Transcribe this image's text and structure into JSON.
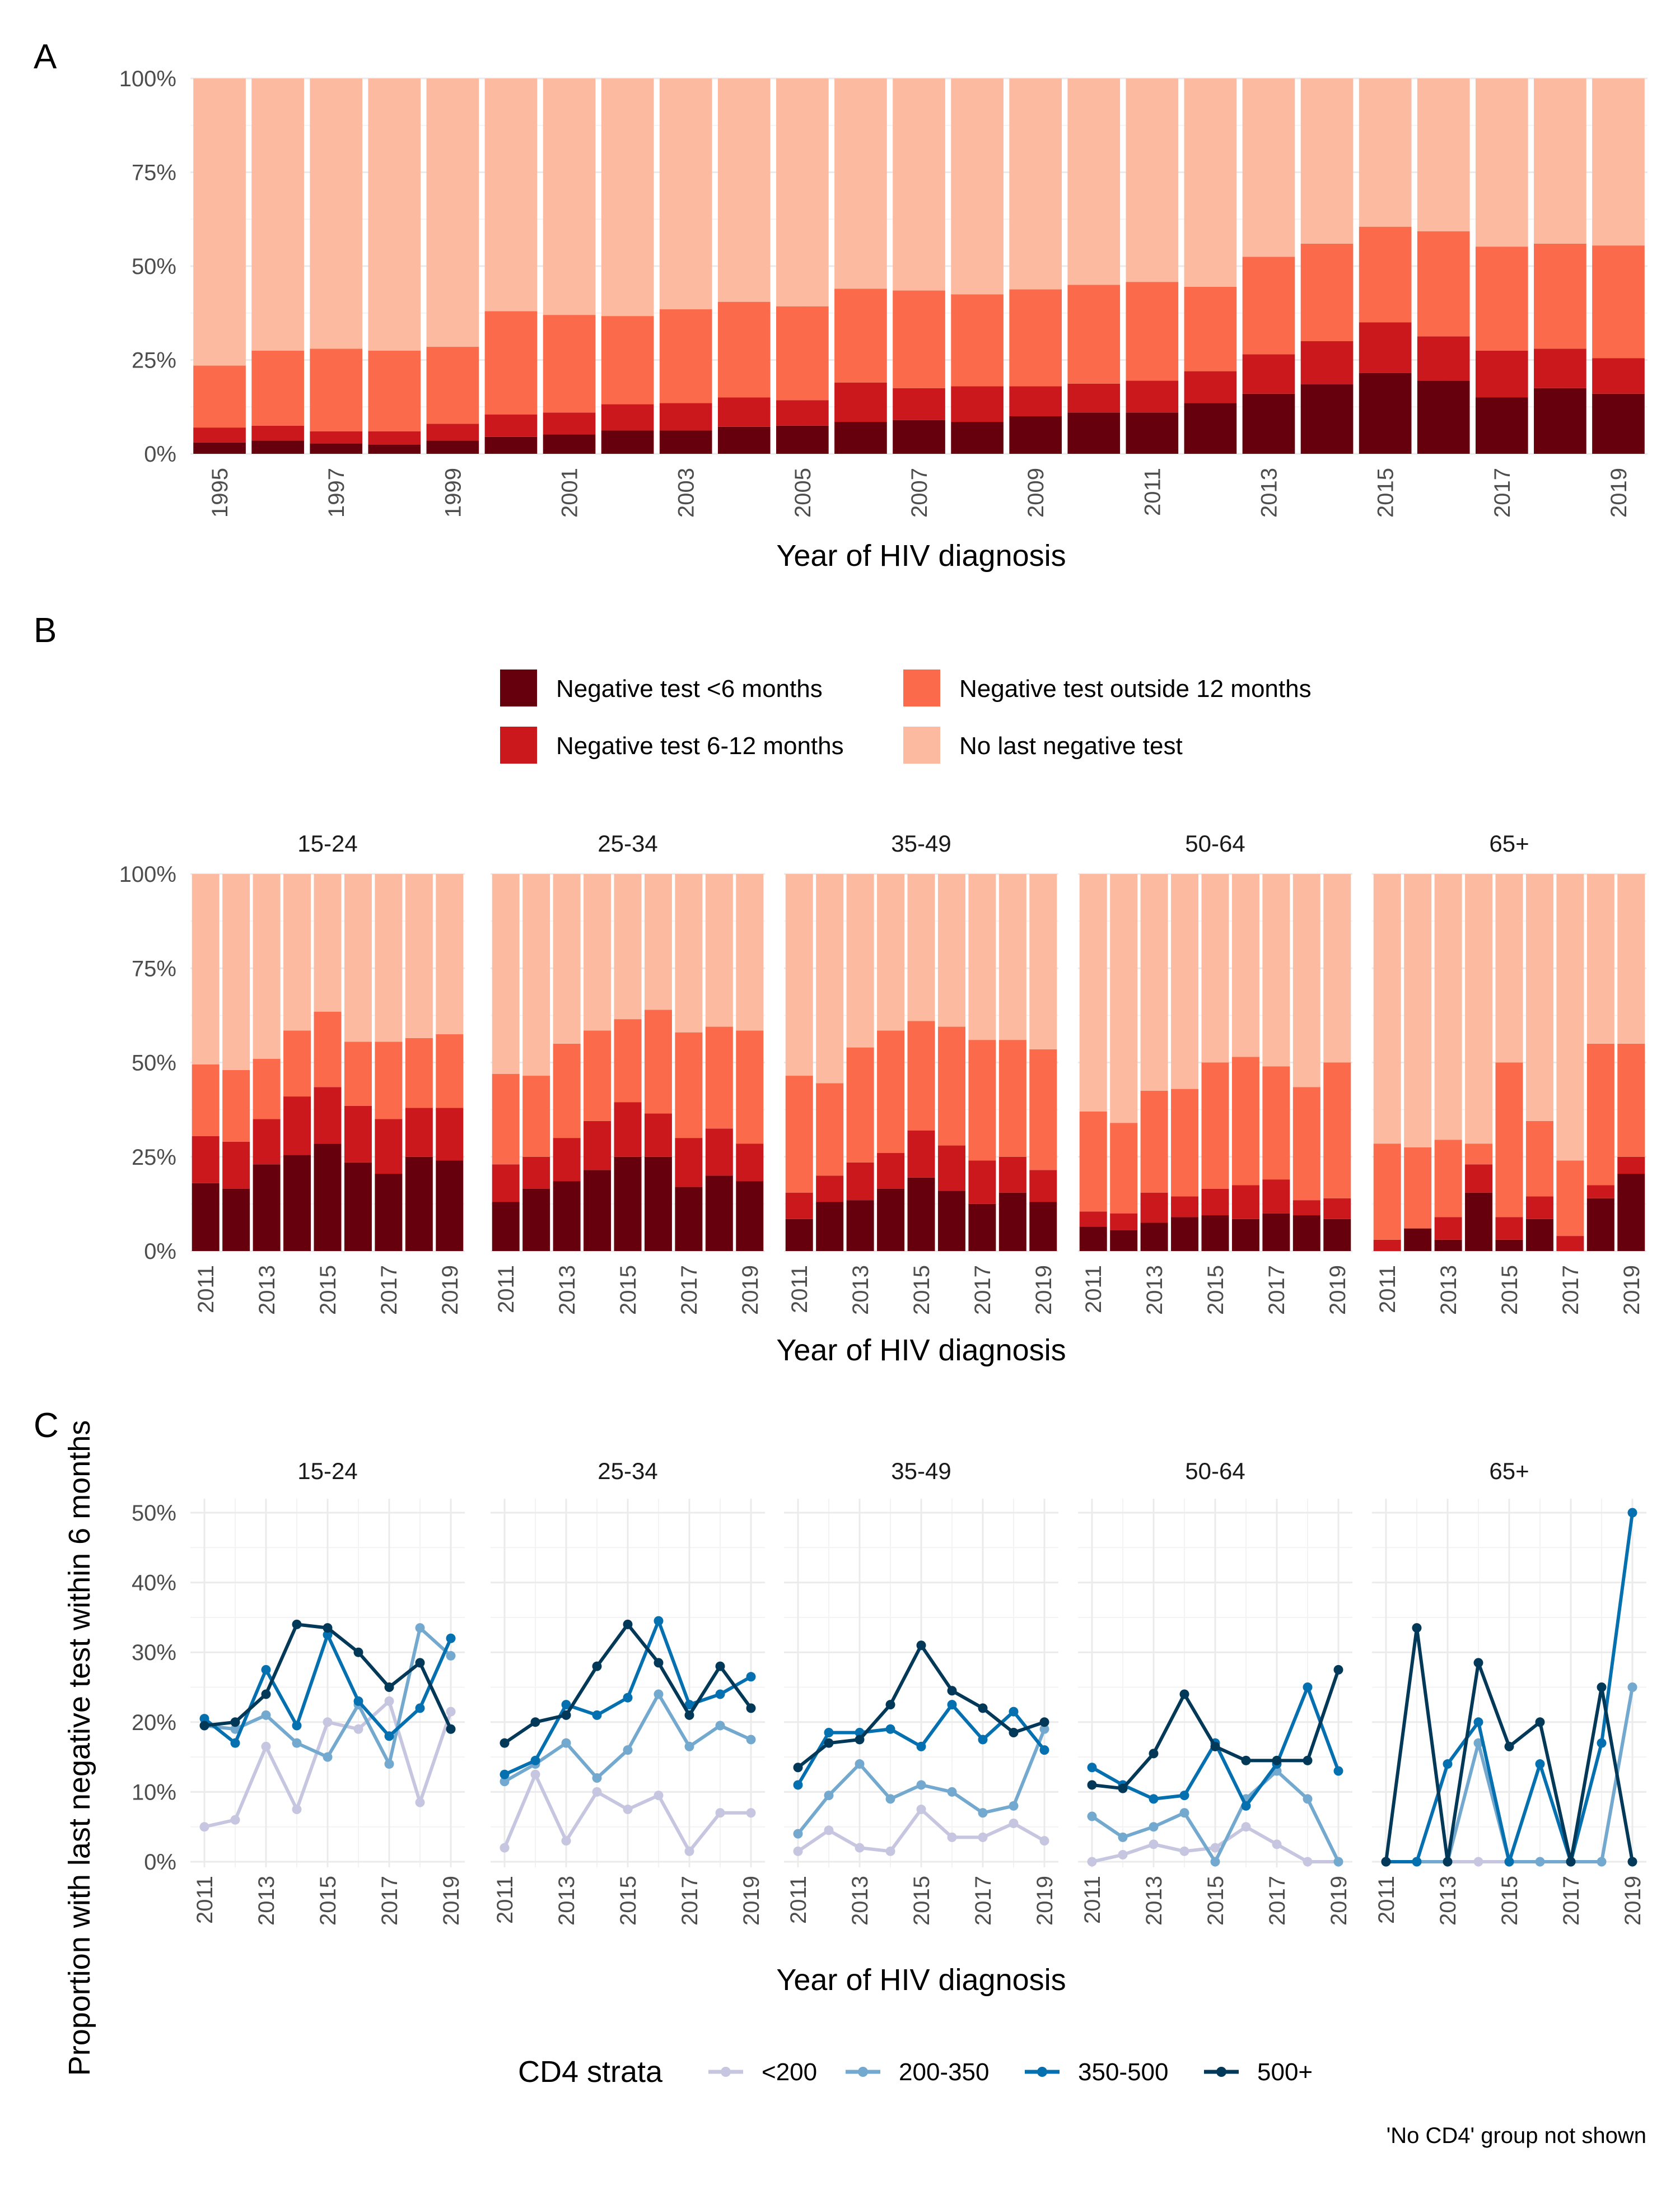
{
  "chart_data": [
    {
      "type": "bar",
      "panel_label": "A",
      "stacked": true,
      "categories": [
        "1995",
        "1996",
        "1997",
        "1998",
        "1999",
        "2000",
        "2001",
        "2002",
        "2003",
        "2004",
        "2005",
        "2006",
        "2007",
        "2008",
        "2009",
        "2010",
        "2011",
        "2012",
        "2013",
        "2014",
        "2015",
        "2016",
        "2017",
        "2018",
        "2019"
      ],
      "x_tick_labels": [
        "1995",
        "1997",
        "1999",
        "2001",
        "2003",
        "2005",
        "2007",
        "2009",
        "2011",
        "2013",
        "2015",
        "2017",
        "2019"
      ],
      "series": [
        {
          "name": "Negative test <6 months",
          "values": [
            3,
            3.5,
            2.8,
            2.5,
            3.5,
            4.5,
            5.2,
            6.2,
            6.2,
            7.2,
            7.5,
            8.5,
            9,
            8.5,
            10,
            11,
            11,
            13.5,
            16,
            18.5,
            21.5,
            19.5,
            15,
            17.5,
            16
          ]
        },
        {
          "name": "Negative test 6-12 months",
          "values": [
            4,
            4,
            3.2,
            3.5,
            4.5,
            6,
            5.8,
            7,
            7.3,
            7.8,
            6.8,
            10.5,
            8.5,
            9.5,
            8,
            7.7,
            8.5,
            8.5,
            10.5,
            11.5,
            13.5,
            11.8,
            12.5,
            10.5,
            9.5
          ]
        },
        {
          "name": "Negative test outside 12 months",
          "values": [
            16.5,
            20,
            22,
            21.5,
            20.5,
            27.5,
            26,
            23.5,
            25,
            25.5,
            25,
            25,
            26,
            24.5,
            25.8,
            26.3,
            26.3,
            22.5,
            26,
            26,
            25.5,
            28,
            27.7,
            28,
            30
          ]
        },
        {
          "name": "No last negative test",
          "values": [
            76.5,
            72.5,
            72,
            72.5,
            71.5,
            62,
            63,
            63.3,
            61.5,
            59.5,
            60.7,
            56,
            56.5,
            57.5,
            56.2,
            55,
            54.2,
            55.5,
            47.5,
            44,
            39.5,
            40.7,
            44.8,
            44,
            44.5
          ]
        }
      ],
      "ylim": [
        0,
        100
      ],
      "y_tick_labels": [
        "0%",
        "25%",
        "50%",
        "75%",
        "100%"
      ],
      "xlabel": "Year of HIV diagnosis",
      "ylabel": ""
    },
    {
      "type": "bar",
      "panel_label": "B",
      "stacked": true,
      "facets": [
        "15-24",
        "25-34",
        "35-49",
        "50-64",
        "65+"
      ],
      "categories": [
        "2011",
        "2012",
        "2013",
        "2014",
        "2015",
        "2016",
        "2017",
        "2018",
        "2019"
      ],
      "x_tick_labels": [
        "2011",
        "2013",
        "2015",
        "2017",
        "2019"
      ],
      "data": {
        "15-24": {
          "Negative test <6 months": [
            18,
            16.5,
            23,
            25.5,
            28.5,
            23.5,
            20.5,
            25,
            24
          ],
          "Negative test 6-12 months": [
            12.5,
            12.5,
            12,
            15.5,
            15,
            15,
            14.5,
            13,
            14
          ],
          "Negative test outside 12 months": [
            19,
            19,
            16,
            17.5,
            20,
            17,
            20.5,
            18.5,
            19.5
          ],
          "No last negative test": [
            50.5,
            52,
            49,
            41.5,
            36.5,
            44.5,
            44.5,
            43.5,
            42.5
          ]
        },
        "25-34": {
          "Negative test <6 months": [
            13,
            16.5,
            18.5,
            21.5,
            25,
            25,
            17,
            20,
            18.5
          ],
          "Negative test 6-12 months": [
            10,
            8.5,
            11.5,
            13,
            14.5,
            11.5,
            13,
            12.5,
            10
          ],
          "Negative test outside 12 months": [
            24,
            21.5,
            25,
            24,
            22,
            27.5,
            28,
            27,
            30
          ],
          "No last negative test": [
            53,
            53.5,
            45,
            41.5,
            38.5,
            36,
            42,
            40.5,
            41.5
          ]
        },
        "35-49": {
          "Negative test <6 months": [
            8.5,
            13,
            13.5,
            16.5,
            19.5,
            16,
            12.5,
            15.5,
            13
          ],
          "Negative test 6-12 months": [
            7,
            7,
            10,
            9.5,
            12.5,
            12,
            11.5,
            9.5,
            8.5
          ],
          "Negative test outside 12 months": [
            31,
            24.5,
            30.5,
            32.5,
            29,
            31.5,
            32,
            31,
            32
          ],
          "No last negative test": [
            53.5,
            55.5,
            46,
            41.5,
            39,
            40.5,
            44,
            44,
            46.5
          ]
        },
        "50-64": {
          "Negative test <6 months": [
            6.5,
            5.5,
            7.5,
            9,
            9.5,
            8.5,
            10,
            9.5,
            8.5
          ],
          "Negative test 6-12 months": [
            4,
            4.5,
            8,
            5.5,
            7,
            9,
            9,
            4,
            5.5
          ],
          "Negative test outside 12 months": [
            26.5,
            24,
            27,
            28.5,
            33.5,
            34,
            30,
            30,
            36
          ],
          "No last negative test": [
            63,
            66,
            57.5,
            57,
            50,
            48.5,
            51,
            56.5,
            50
          ]
        },
        "65+": {
          "Negative test <6 months": [
            0,
            6,
            3,
            15.5,
            3,
            8.5,
            0,
            14,
            20.5
          ],
          "Negative test 6-12 months": [
            3,
            0,
            6,
            7.5,
            6,
            6,
            4,
            3.5,
            4.5
          ],
          "Negative test outside 12 months": [
            25.5,
            21.5,
            20.5,
            5.5,
            41,
            20,
            20,
            37.5,
            30
          ],
          "No last negative test": [
            71.5,
            72.5,
            70.5,
            71.5,
            50,
            65.5,
            76,
            45,
            45
          ]
        }
      },
      "ylim": [
        0,
        100
      ],
      "y_tick_labels": [
        "0%",
        "25%",
        "50%",
        "75%",
        "100%"
      ],
      "xlabel": "Year of HIV diagnosis",
      "ylabel": ""
    },
    {
      "type": "line",
      "panel_label": "C",
      "facets": [
        "15-24",
        "25-34",
        "35-49",
        "50-64",
        "65+"
      ],
      "x": [
        2011,
        2012,
        2013,
        2014,
        2015,
        2016,
        2017,
        2018,
        2019
      ],
      "x_tick_labels": [
        "2011",
        "2013",
        "2015",
        "2017",
        "2019"
      ],
      "data": {
        "15-24": {
          "<200": [
            5,
            6,
            16.5,
            7.5,
            20,
            19,
            23,
            8.5,
            21.5
          ],
          "200-350": [
            19.5,
            19,
            21,
            17,
            15,
            22.5,
            14,
            33.5,
            29.5
          ],
          "350-500": [
            20.5,
            17,
            27.5,
            19.5,
            32.5,
            23,
            18,
            22,
            32
          ],
          "500+": [
            19.5,
            20,
            24,
            34,
            33.5,
            30,
            25,
            28.5,
            19
          ]
        },
        "25-34": {
          "<200": [
            2,
            12.5,
            3,
            10,
            7.5,
            9.5,
            1.5,
            7,
            7
          ],
          "200-350": [
            11.5,
            14,
            17,
            12,
            16,
            24,
            16.5,
            19.5,
            17.5
          ],
          "350-500": [
            12.5,
            14.5,
            22.5,
            21,
            23.5,
            34.5,
            22.5,
            24,
            26.5
          ],
          "500+": [
            17,
            20,
            21,
            28,
            34,
            28.5,
            21,
            28,
            22
          ]
        },
        "35-49": {
          "<200": [
            1.5,
            4.5,
            2,
            1.5,
            7.5,
            3.5,
            3.5,
            5.5,
            3
          ],
          "200-350": [
            4,
            9.5,
            14,
            9,
            11,
            10,
            7,
            8,
            19
          ],
          "350-500": [
            11,
            18.5,
            18.5,
            19,
            16.5,
            22.5,
            17.5,
            21.5,
            16
          ],
          "500+": [
            13.5,
            17,
            17.5,
            22.5,
            31,
            24.5,
            22,
            18.5,
            20
          ]
        },
        "50-64": {
          "<200": [
            0,
            1,
            2.5,
            1.5,
            2,
            5,
            2.5,
            0,
            0
          ],
          "200-350": [
            6.5,
            3.5,
            5,
            7,
            0,
            9,
            13,
            9,
            0
          ],
          "350-500": [
            13.5,
            11,
            9,
            9.5,
            17,
            8,
            14,
            25,
            13
          ],
          "500+": [
            11,
            10.5,
            15.5,
            24,
            16.5,
            14.5,
            14.5,
            14.5,
            27.5
          ]
        },
        "65+": {
          "<200": [
            0,
            0,
            0,
            0,
            0,
            0,
            0,
            0,
            25
          ],
          "200-350": [
            0,
            0,
            0,
            17,
            0,
            0,
            0,
            0,
            25
          ],
          "350-500": [
            0,
            0,
            14,
            20,
            0,
            14,
            0,
            17,
            50
          ],
          "500+": [
            0,
            33.5,
            0,
            28.5,
            16.5,
            20,
            0,
            25,
            0
          ]
        }
      },
      "ylim": [
        0,
        52
      ],
      "y_tick_labels": [
        "0%",
        "10%",
        "20%",
        "30%",
        "40%",
        "50%"
      ],
      "xlabel": "Year of HIV diagnosis",
      "ylabel": "Proportion with last negative test within 6 months"
    }
  ],
  "legend_fill": {
    "items": [
      {
        "label": "Negative test <6 months",
        "color": "#67000d"
      },
      {
        "label": "Negative test outside 12 months",
        "color": "#fb6a4a"
      },
      {
        "label": "Negative test 6-12 months",
        "color": "#cb181d"
      },
      {
        "label": "No last negative test",
        "color": "#fcbba1"
      }
    ]
  },
  "legend_cd4": {
    "title": "CD4 strata",
    "items": [
      {
        "label": "<200",
        "color": "#c6c6e0"
      },
      {
        "label": "200-350",
        "color": "#74a9cf"
      },
      {
        "label": "350-500",
        "color": "#0570b0"
      },
      {
        "label": "500+",
        "color": "#023858"
      }
    ]
  },
  "caption": "'No CD4' group not shown"
}
